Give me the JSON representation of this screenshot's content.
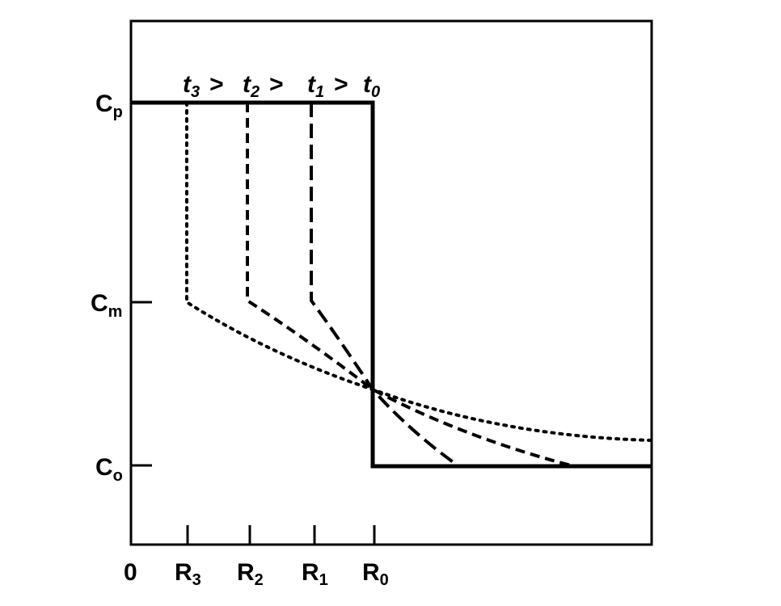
{
  "diagram": {
    "legend": [
      {
        "base": "t",
        "sub": "3",
        "sep": ">"
      },
      {
        "base": "t",
        "sub": "2",
        "sep": ">"
      },
      {
        "base": "t",
        "sub": "1",
        "sep": ">"
      },
      {
        "base": "t",
        "sub": "0",
        "sep": ""
      }
    ],
    "y_axis_labels": [
      {
        "base": "C",
        "sub": "p"
      },
      {
        "base": "C",
        "sub": "m"
      },
      {
        "base": "C",
        "sub": "o"
      }
    ],
    "x_axis_labels": [
      {
        "base": "0",
        "sub": ""
      },
      {
        "base": "R",
        "sub": "3"
      },
      {
        "base": "R",
        "sub": "2"
      },
      {
        "base": "R",
        "sub": "1"
      },
      {
        "base": "R",
        "sub": "0"
      }
    ],
    "colors": {
      "line": "#000000",
      "background": "#ffffff"
    }
  }
}
